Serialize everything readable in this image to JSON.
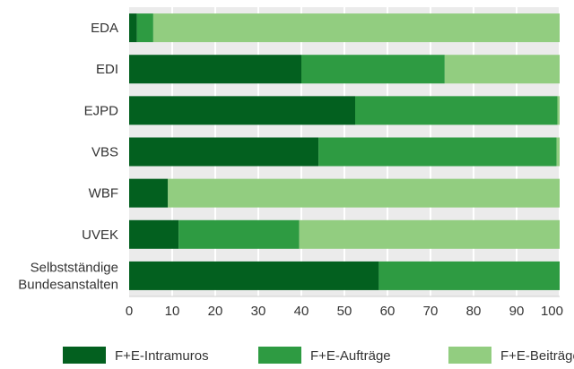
{
  "chart_data": {
    "type": "bar",
    "orientation": "horizontal",
    "stacked": true,
    "categories": [
      "EDA",
      "EDI",
      "EJPD",
      "VBS",
      "WBF",
      "UVEK",
      "Selbstständige Bundesanstalten"
    ],
    "category_lines": [
      [
        "EDA"
      ],
      [
        "EDI"
      ],
      [
        "EJPD"
      ],
      [
        "VBS"
      ],
      [
        "WBF"
      ],
      [
        "UVEK"
      ],
      [
        "Selbstständige",
        "Bundesanstalten"
      ]
    ],
    "series": [
      {
        "name": "F+E-Intramuros",
        "color": "#03601f",
        "values": [
          1.8,
          40,
          52.5,
          44,
          9,
          11.5,
          58
        ]
      },
      {
        "name": "F+E-Aufträge",
        "color": "#2e9b42",
        "values": [
          3.8,
          33.3,
          47,
          55.3,
          0,
          28,
          42
        ]
      },
      {
        "name": "F+E-Beiträge",
        "color": "#92cd80",
        "values": [
          94.4,
          26.7,
          0.5,
          0.7,
          91,
          60.5,
          0
        ]
      }
    ],
    "xlim": [
      0,
      100
    ],
    "xticks": [
      0,
      10,
      20,
      30,
      40,
      50,
      60,
      70,
      80,
      90,
      100
    ],
    "title": "",
    "xlabel": "",
    "ylabel": "",
    "grid": true,
    "legend_position": "bottom",
    "background_color": "#ebebeb",
    "grid_color": "#ffffff"
  }
}
